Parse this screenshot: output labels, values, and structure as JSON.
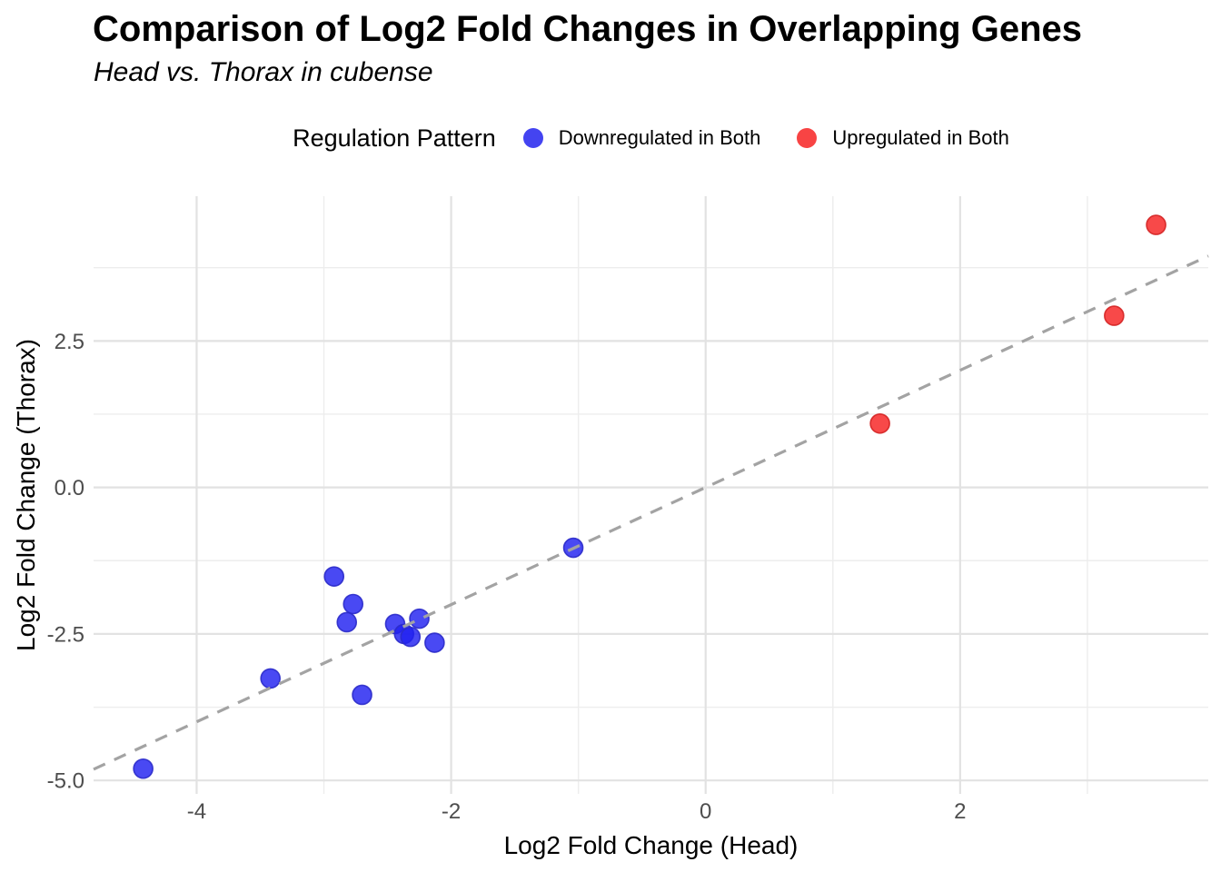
{
  "header": {
    "title": "Comparison of Log2 Fold Changes in Overlapping Genes",
    "subtitle": "Head vs. Thorax in cubense"
  },
  "legend": {
    "title": "Regulation Pattern",
    "entries": [
      {
        "label": "Downregulated in Both",
        "color": "#4444f1"
      },
      {
        "label": "Upregulated in Both",
        "color": "#f84444"
      }
    ]
  },
  "chart_data": {
    "type": "scatter",
    "title": "Comparison of Log2 Fold Changes in Overlapping Genes",
    "subtitle": "Head vs. Thorax in cubense",
    "xlabel": "Log2 Fold Change (Head)",
    "ylabel": "Log2 Fold Change (Thorax)",
    "xlim": [
      -4.81,
      3.95
    ],
    "ylim": [
      -5.23,
      4.97
    ],
    "grid": true,
    "legend_position": "top",
    "x_axis": {
      "major_ticks": [
        {
          "value": -4,
          "label": "-4"
        },
        {
          "value": -2,
          "label": "-2"
        },
        {
          "value": 0,
          "label": "0"
        },
        {
          "value": 2,
          "label": "2"
        }
      ],
      "minor_ticks": [
        -3,
        -1,
        1,
        3
      ]
    },
    "y_axis": {
      "major_ticks": [
        {
          "value": 2.5,
          "label": "2.5"
        },
        {
          "value": 0,
          "label": "0.0"
        },
        {
          "value": -2.5,
          "label": "-2.5"
        },
        {
          "value": -5,
          "label": "-5.0"
        }
      ],
      "minor_ticks": [
        3.75,
        1.25,
        -1.25,
        -3.75
      ]
    },
    "series": [
      {
        "name": "Downregulated in Both",
        "fill": "#2121f0",
        "stroke": "#2a2ac9",
        "points": [
          [
            -4.42,
            -4.8
          ],
          [
            -3.42,
            -3.26
          ],
          [
            -2.92,
            -1.52
          ],
          [
            -2.77,
            -1.99
          ],
          [
            -2.82,
            -2.3
          ],
          [
            -2.7,
            -3.54
          ],
          [
            -2.44,
            -2.33
          ],
          [
            -2.25,
            -2.24
          ],
          [
            -2.37,
            -2.5
          ],
          [
            -2.32,
            -2.55
          ],
          [
            -2.13,
            -2.65
          ],
          [
            -1.04,
            -1.03
          ]
        ]
      },
      {
        "name": "Upregulated in Both",
        "fill": "#f72121",
        "stroke": "#d42424",
        "points": [
          [
            1.37,
            1.09
          ],
          [
            3.21,
            2.93
          ],
          [
            3.54,
            4.48
          ]
        ]
      }
    ],
    "reference_line": {
      "slope": 1,
      "intercept": 0,
      "style": "dashed",
      "color": "#a3a3a3"
    }
  }
}
